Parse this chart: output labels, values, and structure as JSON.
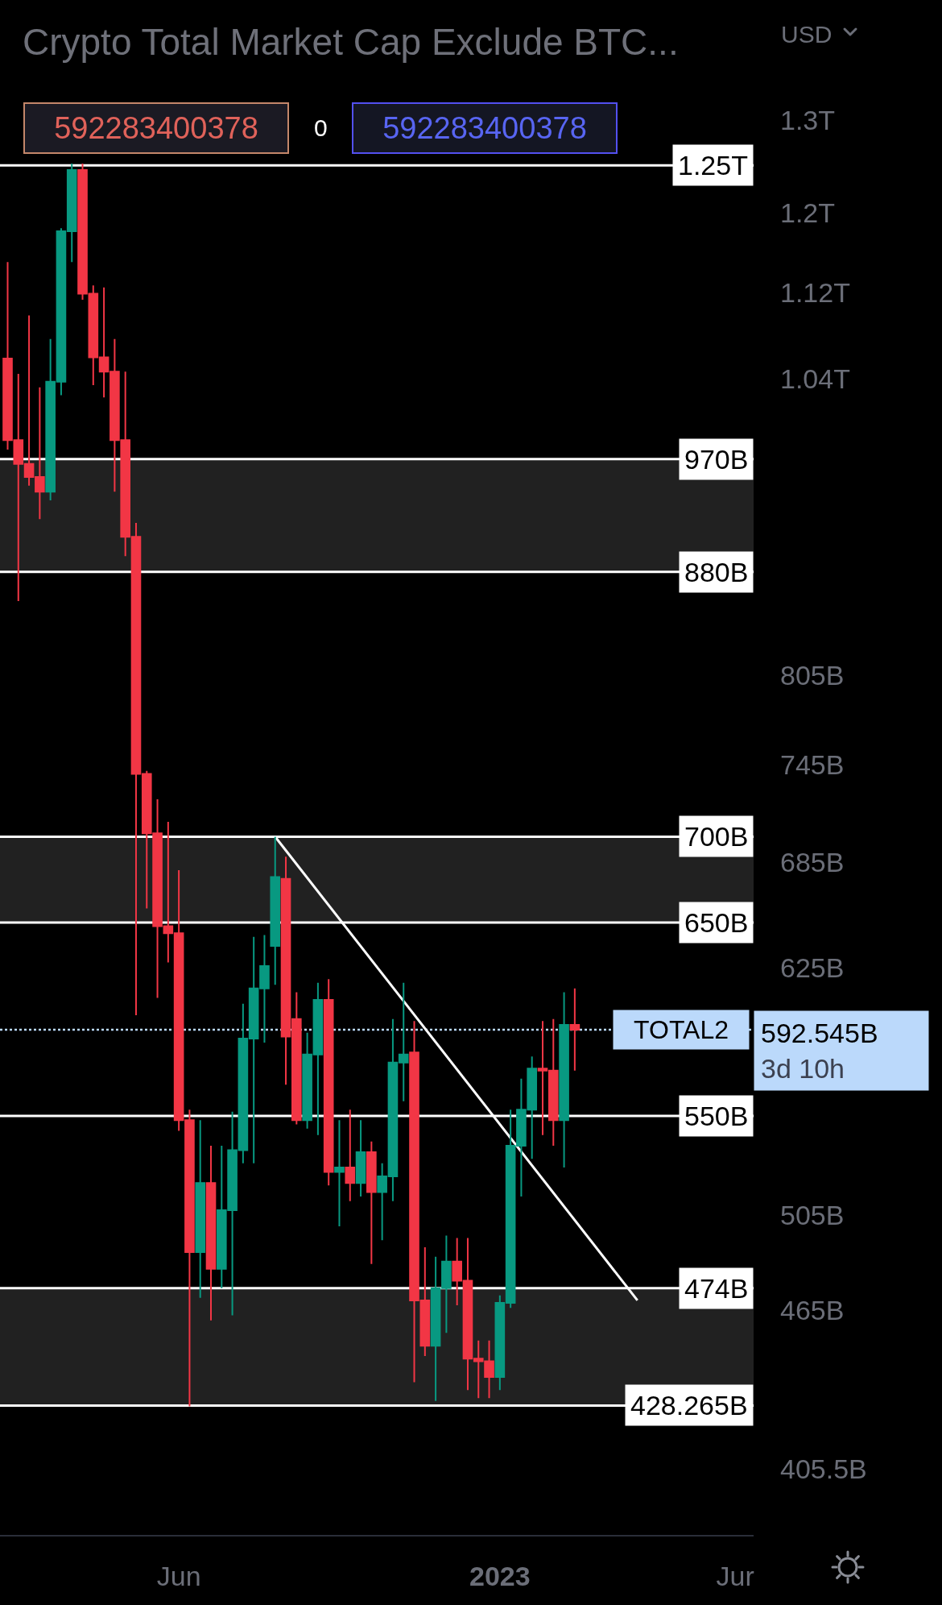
{
  "chart_data": {
    "type": "candlestick",
    "title": "Crypto Total Market Cap Exclude BTC...",
    "ylabel": "USD",
    "x": [
      "2022-02-14",
      "2022-02-21",
      "2022-02-28",
      "2022-03-07",
      "2022-03-14",
      "2022-03-21",
      "2022-03-28",
      "2022-04-04",
      "2022-04-11",
      "2022-04-18",
      "2022-04-25",
      "2022-05-02",
      "2022-05-09",
      "2022-05-16",
      "2022-05-23",
      "2022-05-30",
      "2022-06-06",
      "2022-06-13",
      "2022-06-20",
      "2022-06-27",
      "2022-07-04",
      "2022-07-11",
      "2022-07-18",
      "2022-07-25",
      "2022-08-01",
      "2022-08-08",
      "2022-08-15",
      "2022-08-22",
      "2022-08-29",
      "2022-09-05",
      "2022-09-12",
      "2022-09-19",
      "2022-09-26",
      "2022-10-03",
      "2022-10-10",
      "2022-10-17",
      "2022-10-24",
      "2022-10-31",
      "2022-11-07",
      "2022-11-14",
      "2022-11-21",
      "2022-11-28",
      "2022-12-05",
      "2022-12-12",
      "2022-12-19",
      "2022-12-26",
      "2023-01-02",
      "2023-01-09",
      "2023-01-16",
      "2023-01-23",
      "2023-01-30",
      "2023-02-06",
      "2023-02-13",
      "2023-02-20"
    ],
    "ohlc": [
      [
        1058000000000.0,
        1150000000000.0,
        978000000000.0,
        986000000000.0
      ],
      [
        986000000000.0,
        1044000000000.0,
        858000000000.0,
        966000000000.0
      ],
      [
        966000000000.0,
        1098000000000.0,
        948000000000.0,
        955000000000.0
      ],
      [
        955000000000.0,
        1032000000000.0,
        921000000000.0,
        943000000000.0
      ],
      [
        943000000000.0,
        1076000000000.0,
        936000000000.0,
        1037000000000.0
      ],
      [
        1037000000000.0,
        1184000000000.0,
        1025000000000.0,
        1181000000000.0
      ],
      [
        1181000000000.0,
        1252000000000.0,
        1150000000000.0,
        1245000000000.0
      ],
      [
        1245000000000.0,
        1252000000000.0,
        1113000000000.0,
        1119000000000.0
      ],
      [
        1119000000000.0,
        1127000000000.0,
        1034000000000.0,
        1059000000000.0
      ],
      [
        1059000000000.0,
        1125000000000.0,
        1023000000000.0,
        1046000000000.0
      ],
      [
        1046000000000.0,
        1076000000000.0,
        943000000000.0,
        986000000000.0
      ],
      [
        986000000000.0,
        1046000000000.0,
        892000000000.0,
        907000000000.0
      ],
      [
        907000000000.0,
        918000000000.0,
        600000000000.0,
        739000000000.0
      ],
      [
        739000000000.0,
        741000000000.0,
        658000000000.0,
        702000000000.0
      ],
      [
        702000000000.0,
        723000000000.0,
        609000000000.0,
        648000000000.0
      ],
      [
        648000000000.0,
        709000000000.0,
        628000000000.0,
        644000000000.0
      ],
      [
        644000000000.0,
        680000000000.0,
        543000000000.0,
        548000000000.0
      ],
      [
        548000000000.0,
        553000000000.0,
        428000000000.0,
        489000000000.0
      ],
      [
        489000000000.0,
        548000000000.0,
        470000000000.0,
        519000000000.0
      ],
      [
        519000000000.0,
        536000000000.0,
        461000000000.0,
        482000000000.0
      ],
      [
        482000000000.0,
        536000000000.0,
        474000000000.0,
        507000000000.0
      ],
      [
        507000000000.0,
        552000000000.0,
        463000000000.0,
        534000000000.0
      ],
      [
        534000000000.0,
        606000000000.0,
        528000000000.0,
        588000000000.0
      ],
      [
        588000000000.0,
        642000000000.0,
        528000000000.0,
        614000000000.0
      ],
      [
        614000000000.0,
        643000000000.0,
        586000000000.0,
        626000000000.0
      ],
      [
        637000000000.0,
        700000000000.0,
        616000000000.0,
        676000000000.0
      ],
      [
        675000000000.0,
        688000000000.0,
        565000000000.0,
        589000000000.0
      ],
      [
        598000000000.0,
        612000000000.0,
        546000000000.0,
        548000000000.0
      ],
      [
        548000000000.0,
        591000000000.0,
        544000000000.0,
        580000000000.0
      ],
      [
        580000000000.0,
        617000000000.0,
        541000000000.0,
        608000000000.0
      ],
      [
        608000000000.0,
        619000000000.0,
        518000000000.0,
        524000000000.0
      ],
      [
        524000000000.0,
        548000000000.0,
        500000000000.0,
        526000000000.0
      ],
      [
        526000000000.0,
        553000000000.0,
        511000000000.0,
        519000000000.0
      ],
      [
        519000000000.0,
        548000000000.0,
        513000000000.0,
        533000000000.0
      ],
      [
        533000000000.0,
        538000000000.0,
        484000000000.0,
        515000000000.0
      ],
      [
        515000000000.0,
        528000000000.0,
        494000000000.0,
        522000000000.0
      ],
      [
        522000000000.0,
        598000000000.0,
        511000000000.0,
        576000000000.0
      ],
      [
        576000000000.0,
        617000000000.0,
        557000000000.0,
        580000000000.0
      ],
      [
        581000000000.0,
        597000000000.0,
        437000000000.0,
        469000000000.0
      ],
      [
        469000000000.0,
        491000000000.0,
        447000000000.0,
        451000000000.0
      ],
      [
        451000000000.0,
        487000000000.0,
        430000000000.0,
        474000000000.0
      ],
      [
        474000000000.0,
        496000000000.0,
        456000000000.0,
        485000000000.0
      ],
      [
        485000000000.0,
        495000000000.0,
        467000000000.0,
        477000000000.0
      ],
      [
        477000000000.0,
        495000000000.0,
        434000000000.0,
        446000000000.0
      ],
      [
        446000000000.0,
        453000000000.0,
        431000000000.0,
        445000000000.0
      ],
      [
        445000000000.0,
        453000000000.0,
        431000000000.0,
        439000000000.0
      ],
      [
        439000000000.0,
        471000000000.0,
        434000000000.0,
        468000000000.0
      ],
      [
        468000000000.0,
        553000000000.0,
        466000000000.0,
        536000000000.0
      ],
      [
        536000000000.0,
        568000000000.0,
        513000000000.0,
        553000000000.0
      ],
      [
        553000000000.0,
        579000000000.0,
        530000000000.0,
        573000000000.0
      ],
      [
        573000000000.0,
        597000000000.0,
        541000000000.0,
        572000000000.0
      ],
      [
        572000000000.0,
        598000000000.0,
        536000000000.0,
        548000000000.0
      ],
      [
        548000000000.0,
        612000000000.0,
        526000000000.0,
        595000000000.0
      ],
      [
        595000000000.0,
        614000000000.0,
        572000000000.0,
        592545000000.0
      ]
    ],
    "colors": [
      "#f23645",
      "#f23645",
      "#f23645",
      "#f23645",
      "#089981",
      "#089981",
      "#089981",
      "#f23645",
      "#f23645",
      "#f23645",
      "#f23645",
      "#f23645",
      "#f23645",
      "#f23645",
      "#f23645",
      "#f23645",
      "#f23645",
      "#f23645",
      "#089981",
      "#f23645",
      "#089981",
      "#089981",
      "#089981",
      "#089981",
      "#089981",
      "#089981",
      "#f23645",
      "#f23645",
      "#089981",
      "#089981",
      "#f23645",
      "#089981",
      "#f23645",
      "#089981",
      "#f23645",
      "#089981",
      "#089981",
      "#089981",
      "#f23645",
      "#f23645",
      "#089981",
      "#089981",
      "#f23645",
      "#f23645",
      "#f23645",
      "#f23645",
      "#089981",
      "#089981",
      "#089981",
      "#089981",
      "#f23645",
      "#f23645",
      "#089981",
      "#f23645"
    ],
    "series": [
      {
        "type": "line",
        "x": [
          "2022-08-08",
          "2023-04-02"
        ],
        "values": [
          700000000000.0,
          469000000000.0
        ],
        "color": "#ffffff"
      }
    ],
    "xlim": [
      "2022-02-09",
      "2023-06-17"
    ],
    "xticks": [
      {
        "value": "2022-06-06",
        "label": "Jun"
      },
      {
        "value": "2023-01-02",
        "label": "2023"
      },
      {
        "value": "2023-06-05",
        "label": "Jur"
      }
    ],
    "ylim": [
      383000000000.0,
      1442000000000.0
    ],
    "log": true,
    "yticks": [
      {
        "value": 1300000000000.0,
        "label": "1.3T"
      },
      {
        "value": 1200000000000.0,
        "label": "1.2T"
      },
      {
        "value": 1120000000000.0,
        "label": "1.12T"
      },
      {
        "value": 1040000000000.0,
        "label": "1.04T"
      },
      {
        "value": 805000000000.0,
        "label": "805B"
      },
      {
        "value": 745000000000.0,
        "label": "745B"
      },
      {
        "value": 685000000000.0,
        "label": "685B"
      },
      {
        "value": 625000000000.0,
        "label": "625B"
      },
      {
        "value": 505000000000.0,
        "label": "505B"
      },
      {
        "value": 465000000000.0,
        "label": "465B"
      },
      {
        "value": 405500000000.0,
        "label": "405.5B"
      }
    ],
    "bands": [
      {
        "axis": "y",
        "from": 880000000000.0,
        "to": 970000000000.0,
        "color": "#212121"
      },
      {
        "axis": "y",
        "from": 650000000000.0,
        "to": 700000000000.0,
        "color": "#212121"
      },
      {
        "axis": "y",
        "from": 428265000000.0,
        "to": 474000000000.0,
        "color": "#212121"
      }
    ],
    "ref_lines": [
      {
        "axis": "y",
        "value": 1250000000000.0,
        "label": "1.25T",
        "color": "#ffffff"
      },
      {
        "axis": "y",
        "value": 970000000000.0,
        "label": "970B",
        "color": "#ffffff"
      },
      {
        "axis": "y",
        "value": 880000000000.0,
        "label": "880B",
        "color": "#ffffff"
      },
      {
        "axis": "y",
        "value": 700000000000.0,
        "label": "700B",
        "color": "#ffffff"
      },
      {
        "axis": "y",
        "value": 650000000000.0,
        "label": "650B",
        "color": "#ffffff"
      },
      {
        "axis": "y",
        "value": 550000000000.0,
        "label": "550B",
        "color": "#ffffff"
      },
      {
        "axis": "y",
        "value": 474000000000.0,
        "label": "474B",
        "color": "#ffffff"
      },
      {
        "axis": "y",
        "value": 428265000000.0,
        "label": "428.265B",
        "color": "#ffffff"
      },
      {
        "axis": "y",
        "value": 592545000000.0,
        "label": "592.545B\n3d 10h",
        "color": "#bbd9fb",
        "line_style": "dotted"
      }
    ],
    "annotations": [
      "592283400378",
      "0",
      "592283400378",
      {
        "text": "TOTAL2",
        "y": 592545000000.0
      }
    ]
  }
}
